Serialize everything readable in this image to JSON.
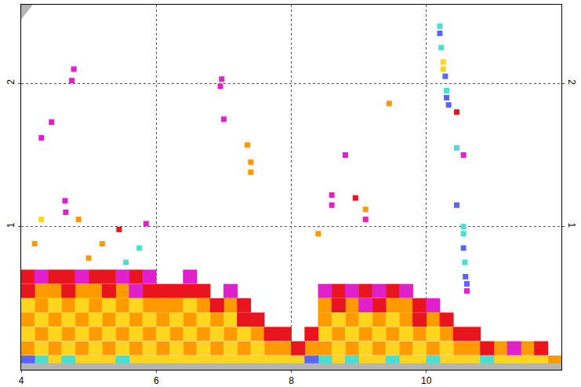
{
  "chart_data": {
    "type": "scatter",
    "xlim": [
      4,
      12
    ],
    "ylim": [
      0,
      2.55
    ],
    "y2lim": [
      0,
      2.55
    ],
    "xticks": [
      4,
      6,
      8,
      10
    ],
    "yticks": [
      1,
      2
    ],
    "y2ticks": [
      1,
      2
    ],
    "grid": true,
    "series": [
      {
        "color": "#ff9a00",
        "marker": "block",
        "x": [
          4.1,
          4.1,
          4.3,
          4.3,
          4.5,
          4.5,
          4.7,
          4.7,
          4.9,
          4.9,
          5.1,
          5.1,
          5.3,
          5.3,
          5.5,
          5.5,
          5.7,
          5.7,
          5.9,
          5.9,
          6.1,
          6.1,
          6.3,
          6.5,
          6.5,
          6.7,
          6.9,
          7.1,
          7.3,
          8.5,
          8.5,
          8.7,
          8.9,
          8.9,
          9.1,
          9.3,
          9.3,
          9.5,
          9.7,
          9.7,
          9.9,
          10.1,
          4.3,
          4.5,
          4.9,
          5.1,
          5.5,
          6.1,
          6.3,
          6.7,
          6.9,
          7.1,
          7.5,
          7.7,
          7.9,
          8.3,
          8.5,
          8.9,
          9.5,
          9.7,
          10.1,
          10.3,
          10.5,
          10.7,
          11.1,
          11.5,
          11.9
        ],
        "values": [
          0.15,
          0.35,
          0.25,
          0.45,
          0.15,
          0.35,
          0.25,
          0.45,
          0.15,
          0.35,
          0.25,
          0.45,
          0.15,
          0.35,
          0.25,
          0.45,
          0.15,
          0.35,
          0.25,
          0.45,
          0.15,
          0.35,
          0.25,
          0.15,
          0.35,
          0.25,
          0.15,
          0.25,
          0.15,
          0.15,
          0.35,
          0.25,
          0.15,
          0.35,
          0.25,
          0.15,
          0.35,
          0.25,
          0.15,
          0.35,
          0.25,
          0.15,
          0.55,
          0.55,
          0.55,
          0.55,
          0.55,
          0.45,
          0.45,
          0.45,
          0.35,
          0.45,
          0.25,
          0.15,
          0.15,
          0.15,
          0.45,
          0.45,
          0.45,
          0.45,
          0.35,
          0.25,
          0.15,
          0.15,
          0.15,
          0.15,
          0.05
        ]
      },
      {
        "color": "#ffd51e",
        "marker": "block",
        "x": [
          4.1,
          4.1,
          4.3,
          4.3,
          4.5,
          4.5,
          4.7,
          4.7,
          4.9,
          4.9,
          5.1,
          5.1,
          5.3,
          5.3,
          5.5,
          5.5,
          5.7,
          5.7,
          5.9,
          5.9,
          6.1,
          6.3,
          6.3,
          6.5,
          6.5,
          6.7,
          6.7,
          6.9,
          7.1,
          7.1,
          7.3,
          7.5,
          8.5,
          8.7,
          8.7,
          8.9,
          9.1,
          9.1,
          9.3,
          9.5,
          9.5,
          9.7,
          9.9,
          10.1,
          10.3,
          4.5,
          4.9,
          5.1,
          5.3,
          5.7,
          5.9,
          6.1,
          6.3,
          6.5,
          6.7,
          6.9,
          7.1,
          7.3,
          7.5,
          7.7,
          7.9,
          8.1,
          8.7,
          9.1,
          9.3,
          9.7,
          9.9,
          10.3,
          10.5,
          10.7,
          11.1,
          11.3,
          11.5,
          11.7
        ],
        "values": [
          0.25,
          0.45,
          0.15,
          0.35,
          0.25,
          0.45,
          0.15,
          0.35,
          0.25,
          0.45,
          0.15,
          0.35,
          0.25,
          0.45,
          0.15,
          0.35,
          0.25,
          0.45,
          0.15,
          0.35,
          0.25,
          0.15,
          0.35,
          0.25,
          0.45,
          0.15,
          0.35,
          0.25,
          0.15,
          0.35,
          0.25,
          0.15,
          0.25,
          0.15,
          0.35,
          0.25,
          0.15,
          0.35,
          0.25,
          0.15,
          0.35,
          0.25,
          0.15,
          0.25,
          0.15,
          0.05,
          0.05,
          0.05,
          0.05,
          0.05,
          0.05,
          0.05,
          0.05,
          0.05,
          0.05,
          0.05,
          0.05,
          0.05,
          0.05,
          0.05,
          0.05,
          0.05,
          0.05,
          0.05,
          0.05,
          0.05,
          0.05,
          0.05,
          0.05,
          0.05,
          0.05,
          0.05,
          0.05,
          0.05
        ]
      },
      {
        "color": "#e8141e",
        "marker": "block",
        "x": [
          4.1,
          4.5,
          4.7,
          5.1,
          5.3,
          5.7,
          6.1,
          6.3,
          6.7,
          6.9,
          7.3,
          7.5,
          7.7,
          7.9,
          8.1,
          8.3,
          8.7,
          9.1,
          9.5,
          9.9,
          10.3,
          10.5,
          10.7,
          10.9,
          11.7,
          4.1,
          4.7,
          5.3,
          5.9,
          6.5,
          7.3,
          8.7,
          9.3,
          9.9
        ],
        "values": [
          0.65,
          0.65,
          0.65,
          0.65,
          0.65,
          0.65,
          0.55,
          0.55,
          0.55,
          0.45,
          0.45,
          0.35,
          0.25,
          0.25,
          0.15,
          0.25,
          0.55,
          0.55,
          0.55,
          0.45,
          0.35,
          0.25,
          0.25,
          0.15,
          0.15,
          0.55,
          0.55,
          0.55,
          0.55,
          0.55,
          0.35,
          0.45,
          0.45,
          0.35
        ]
      },
      {
        "color": "#e020c8",
        "marker": "block",
        "x": [
          4.3,
          4.9,
          5.5,
          5.9,
          6.5,
          7.1,
          8.5,
          8.9,
          9.3,
          9.7,
          10.1,
          11.3,
          5.7,
          9.1
        ],
        "values": [
          0.65,
          0.65,
          0.65,
          0.65,
          0.65,
          0.55,
          0.55,
          0.55,
          0.55,
          0.55,
          0.45,
          0.15,
          0.55,
          0.45
        ]
      },
      {
        "color": "#48e0d0",
        "marker": "block",
        "x": [
          4.3,
          4.7,
          5.5,
          8.5,
          8.9,
          9.5,
          10.1,
          10.9
        ],
        "values": [
          0.05,
          0.05,
          0.05,
          0.05,
          0.05,
          0.05,
          0.05,
          0.05
        ]
      },
      {
        "color": "#5a64ff",
        "marker": "block",
        "x": [
          4.1,
          8.3
        ],
        "values": [
          0.05,
          0.05
        ]
      },
      {
        "color": "#e020c8",
        "marker": "square",
        "x": [
          4.75,
          4.78,
          4.45,
          4.3,
          4.65,
          4.66,
          5.85,
          6.95,
          6.97,
          7.0,
          8.6,
          8.6,
          8.8,
          9.1,
          10.55,
          10.6
        ],
        "values": [
          2.02,
          2.1,
          1.73,
          1.62,
          1.18,
          1.1,
          1.02,
          1.98,
          2.03,
          1.75,
          1.15,
          1.22,
          1.5,
          1.05,
          1.5,
          0.55
        ]
      },
      {
        "color": "#e8141e",
        "marker": "square",
        "x": [
          5.45,
          8.95,
          10.45
        ],
        "values": [
          0.98,
          1.2,
          1.8
        ]
      },
      {
        "color": "#ff9a00",
        "marker": "square",
        "x": [
          4.85,
          4.2,
          5.2,
          7.35,
          7.4,
          7.4,
          8.4,
          9.45,
          9.1,
          5.0
        ],
        "values": [
          1.05,
          0.88,
          0.88,
          1.57,
          1.38,
          1.45,
          0.95,
          1.86,
          1.12,
          0.78
        ]
      },
      {
        "color": "#ffd51e",
        "marker": "square",
        "x": [
          4.3,
          10.25,
          10.25
        ],
        "values": [
          1.05,
          2.15,
          2.1
        ]
      },
      {
        "color": "#48e0d0",
        "marker": "square",
        "x": [
          5.75,
          5.55,
          10.22,
          10.3,
          10.45,
          10.55,
          10.57,
          10.55,
          10.2
        ],
        "values": [
          0.85,
          0.75,
          2.25,
          1.95,
          1.55,
          0.95,
          0.75,
          1.0,
          2.4
        ]
      },
      {
        "color": "#5a64ff",
        "marker": "square",
        "x": [
          10.2,
          10.28,
          10.33,
          10.45,
          10.55,
          10.58,
          10.6,
          10.3
        ],
        "values": [
          2.35,
          2.05,
          1.85,
          1.15,
          0.85,
          0.65,
          0.6,
          1.9
        ]
      }
    ]
  }
}
